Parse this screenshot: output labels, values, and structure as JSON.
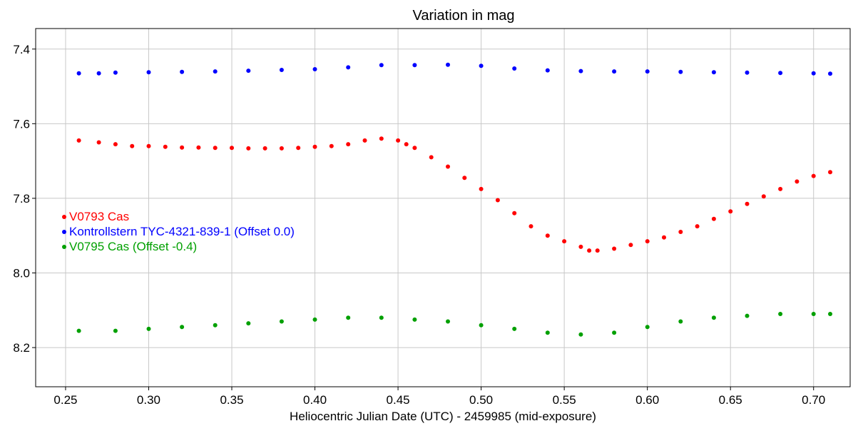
{
  "chart_data": {
    "type": "scatter",
    "title": "Variation in mag",
    "xlabel": "Heliocentric Julian Date (UTC) - 2459985 (mid-exposure)",
    "ylabel": "",
    "xlim": [
      0.232,
      0.722
    ],
    "ylim": [
      8.305,
      7.345
    ],
    "y_inverted": true,
    "xticks": [
      0.25,
      0.3,
      0.35,
      0.4,
      0.45,
      0.5,
      0.55,
      0.6,
      0.65,
      0.7
    ],
    "xtick_labels": [
      "0.25",
      "0.30",
      "0.35",
      "0.40",
      "0.45",
      "0.50",
      "0.55",
      "0.60",
      "0.65",
      "0.70"
    ],
    "yticks": [
      7.4,
      7.6,
      7.8,
      8.0,
      8.2
    ],
    "ytick_labels": [
      "7.4",
      "7.6",
      "7.8",
      "8.0",
      "8.2"
    ],
    "grid": true,
    "legend_placement": "center-left",
    "series": [
      {
        "name": "V0793 Cas",
        "color": "#ff0000",
        "x": [
          0.258,
          0.27,
          0.28,
          0.29,
          0.3,
          0.31,
          0.32,
          0.33,
          0.34,
          0.35,
          0.36,
          0.37,
          0.38,
          0.39,
          0.4,
          0.41,
          0.42,
          0.43,
          0.44,
          0.45,
          0.455,
          0.46,
          0.47,
          0.48,
          0.49,
          0.5,
          0.51,
          0.52,
          0.53,
          0.54,
          0.55,
          0.56,
          0.565,
          0.57,
          0.58,
          0.59,
          0.6,
          0.61,
          0.62,
          0.63,
          0.64,
          0.65,
          0.66,
          0.67,
          0.68,
          0.69,
          0.7,
          0.71
        ],
        "y": [
          7.645,
          7.65,
          7.655,
          7.66,
          7.66,
          7.662,
          7.664,
          7.664,
          7.665,
          7.665,
          7.666,
          7.666,
          7.666,
          7.665,
          7.662,
          7.66,
          7.655,
          7.645,
          7.64,
          7.645,
          7.655,
          7.665,
          7.69,
          7.715,
          7.745,
          7.775,
          7.805,
          7.84,
          7.875,
          7.9,
          7.915,
          7.93,
          7.94,
          7.94,
          7.935,
          7.925,
          7.915,
          7.905,
          7.89,
          7.875,
          7.855,
          7.835,
          7.815,
          7.795,
          7.775,
          7.755,
          7.74,
          7.73
        ]
      },
      {
        "name": "Kontrollstern TYC-4321-839-1  (Offset 0.0)",
        "color": "#0000ff",
        "x": [
          0.258,
          0.27,
          0.28,
          0.3,
          0.32,
          0.34,
          0.36,
          0.38,
          0.4,
          0.42,
          0.44,
          0.46,
          0.48,
          0.5,
          0.52,
          0.54,
          0.56,
          0.58,
          0.6,
          0.62,
          0.64,
          0.66,
          0.68,
          0.7,
          0.71
        ],
        "y": [
          7.465,
          7.465,
          7.463,
          7.462,
          7.461,
          7.46,
          7.458,
          7.456,
          7.454,
          7.449,
          7.443,
          7.443,
          7.442,
          7.445,
          7.452,
          7.457,
          7.459,
          7.46,
          7.46,
          7.461,
          7.462,
          7.463,
          7.464,
          7.465,
          7.466
        ]
      },
      {
        "name": "V0795 Cas (Offset -0.4)",
        "color": "#00a000",
        "x": [
          0.258,
          0.28,
          0.3,
          0.32,
          0.34,
          0.36,
          0.38,
          0.4,
          0.42,
          0.44,
          0.46,
          0.48,
          0.5,
          0.52,
          0.54,
          0.56,
          0.58,
          0.6,
          0.62,
          0.64,
          0.66,
          0.68,
          0.7,
          0.71
        ],
        "y": [
          8.155,
          8.155,
          8.15,
          8.145,
          8.14,
          8.135,
          8.13,
          8.125,
          8.12,
          8.12,
          8.125,
          8.13,
          8.14,
          8.15,
          8.16,
          8.165,
          8.16,
          8.145,
          8.13,
          8.12,
          8.115,
          8.11,
          8.11,
          8.11
        ]
      }
    ]
  }
}
